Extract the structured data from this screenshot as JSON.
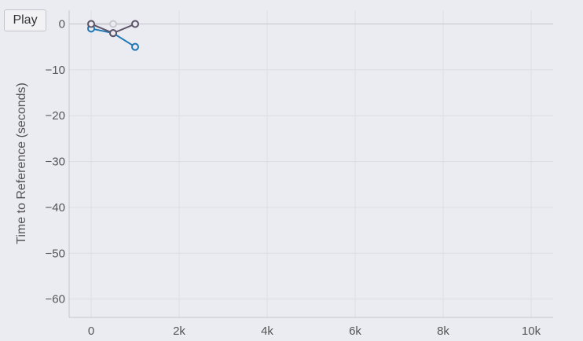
{
  "controls": {
    "play_label": "Play"
  },
  "chart_data": {
    "type": "line",
    "title": "",
    "xlabel": "",
    "ylabel": "Time to Reference (seconds)",
    "xlim": [
      -500,
      10500
    ],
    "ylim": [
      -64,
      3
    ],
    "x_ticks": [
      0,
      2000,
      4000,
      6000,
      8000,
      10000
    ],
    "x_tick_labels": [
      "0",
      "2k",
      "4k",
      "6k",
      "8k",
      "10k"
    ],
    "y_ticks": [
      0,
      -10,
      -20,
      -30,
      -40,
      -50,
      -60
    ],
    "y_tick_labels": [
      "0",
      "−10",
      "−20",
      "−30",
      "−40",
      "−50",
      "−60"
    ],
    "grid": true,
    "series": [
      {
        "color": "#c8c8d0",
        "x": [
          0,
          500,
          1000
        ],
        "y": [
          0,
          0,
          0
        ]
      },
      {
        "color": "#1f77b4",
        "x": [
          0,
          500,
          1000
        ],
        "y": [
          -1,
          -2,
          -5
        ]
      },
      {
        "color": "#5e5468",
        "x": [
          0,
          500,
          1000
        ],
        "y": [
          0,
          -2,
          0
        ]
      }
    ]
  }
}
